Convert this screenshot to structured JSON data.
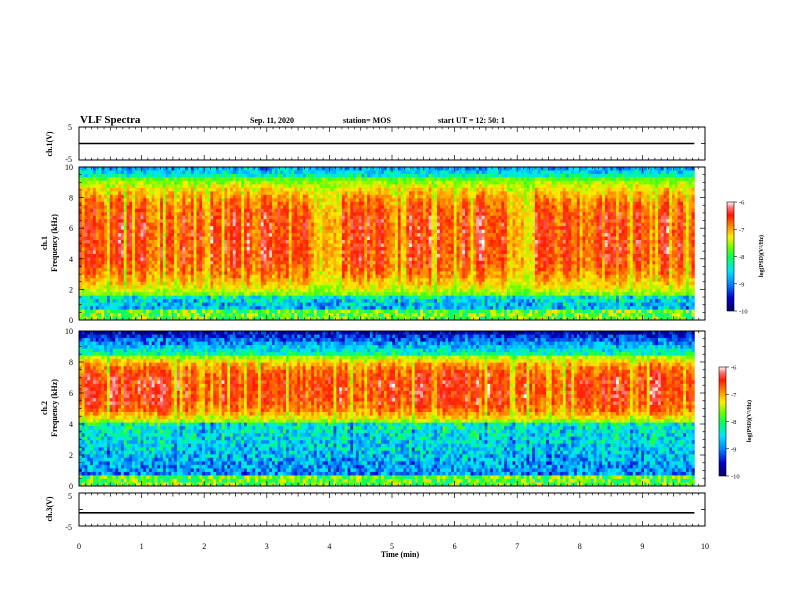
{
  "header": {
    "title": "VLF Spectra",
    "date": "Sep. 11, 2020",
    "station": "station= MOS",
    "start_time": "start UT = 12: 50: 1"
  },
  "chart_data": [
    {
      "type": "line",
      "panel": "ch1-waveform",
      "ylabel": "ch.1(V)",
      "ylim": [
        -5,
        5
      ],
      "y_ticks": [
        "5",
        "-5"
      ],
      "trace_level": 0,
      "xlim": [
        0,
        10
      ]
    },
    {
      "type": "heatmap",
      "panel": "ch1-spectrogram",
      "ylabel": "ch.1\nFrequency (kHz)",
      "ylim": [
        0,
        10
      ],
      "y_ticks": [
        "0",
        "2",
        "4",
        "6",
        "8",
        "10"
      ],
      "xlim": [
        0,
        10
      ],
      "data_end_min": 9.83,
      "zlim": [
        -10,
        -6
      ],
      "colorbar_label": "log(PSD)(V²/Hz)",
      "colorbar_ticks": [
        "-6",
        "-7",
        "-8",
        "-9",
        "-10"
      ],
      "intense_band_khz": [
        1.5,
        9.3
      ],
      "dropout_segments_min": [
        [
          3.75,
          4.2
        ],
        [
          6.85,
          7.3
        ]
      ]
    },
    {
      "type": "heatmap",
      "panel": "ch2-spectrogram",
      "ylabel": "ch.2\nFrequency (kHz)",
      "ylim": [
        0,
        10
      ],
      "y_ticks": [
        "0",
        "2",
        "4",
        "6",
        "8",
        "10"
      ],
      "xlim": [
        0,
        10
      ],
      "data_end_min": 9.83,
      "zlim": [
        -10,
        -6
      ],
      "colorbar_label": "log(PSD)(V²/Hz)",
      "colorbar_ticks": [
        "-6",
        "-7",
        "-8",
        "-9",
        "-10"
      ],
      "intense_band_khz": [
        4,
        8.5
      ],
      "dropout_segments_min": []
    },
    {
      "type": "line",
      "panel": "ch3-waveform",
      "ylabel": "ch.3(V)",
      "ylim": [
        -5,
        5
      ],
      "y_ticks": [
        "5",
        "-5"
      ],
      "trace_level": -1,
      "xlim": [
        0,
        10
      ],
      "x_ticks": [
        "0",
        "1",
        "2",
        "3",
        "4",
        "5",
        "6",
        "7",
        "8",
        "9",
        "10"
      ],
      "xlabel": "Time (min)"
    }
  ],
  "colormap": [
    "#000066",
    "#0000cc",
    "#0066ff",
    "#00ccff",
    "#00ff99",
    "#33ff00",
    "#ccff00",
    "#ffee00",
    "#ff8800",
    "#ff2a00",
    "#ff4444",
    "#ffffff"
  ]
}
